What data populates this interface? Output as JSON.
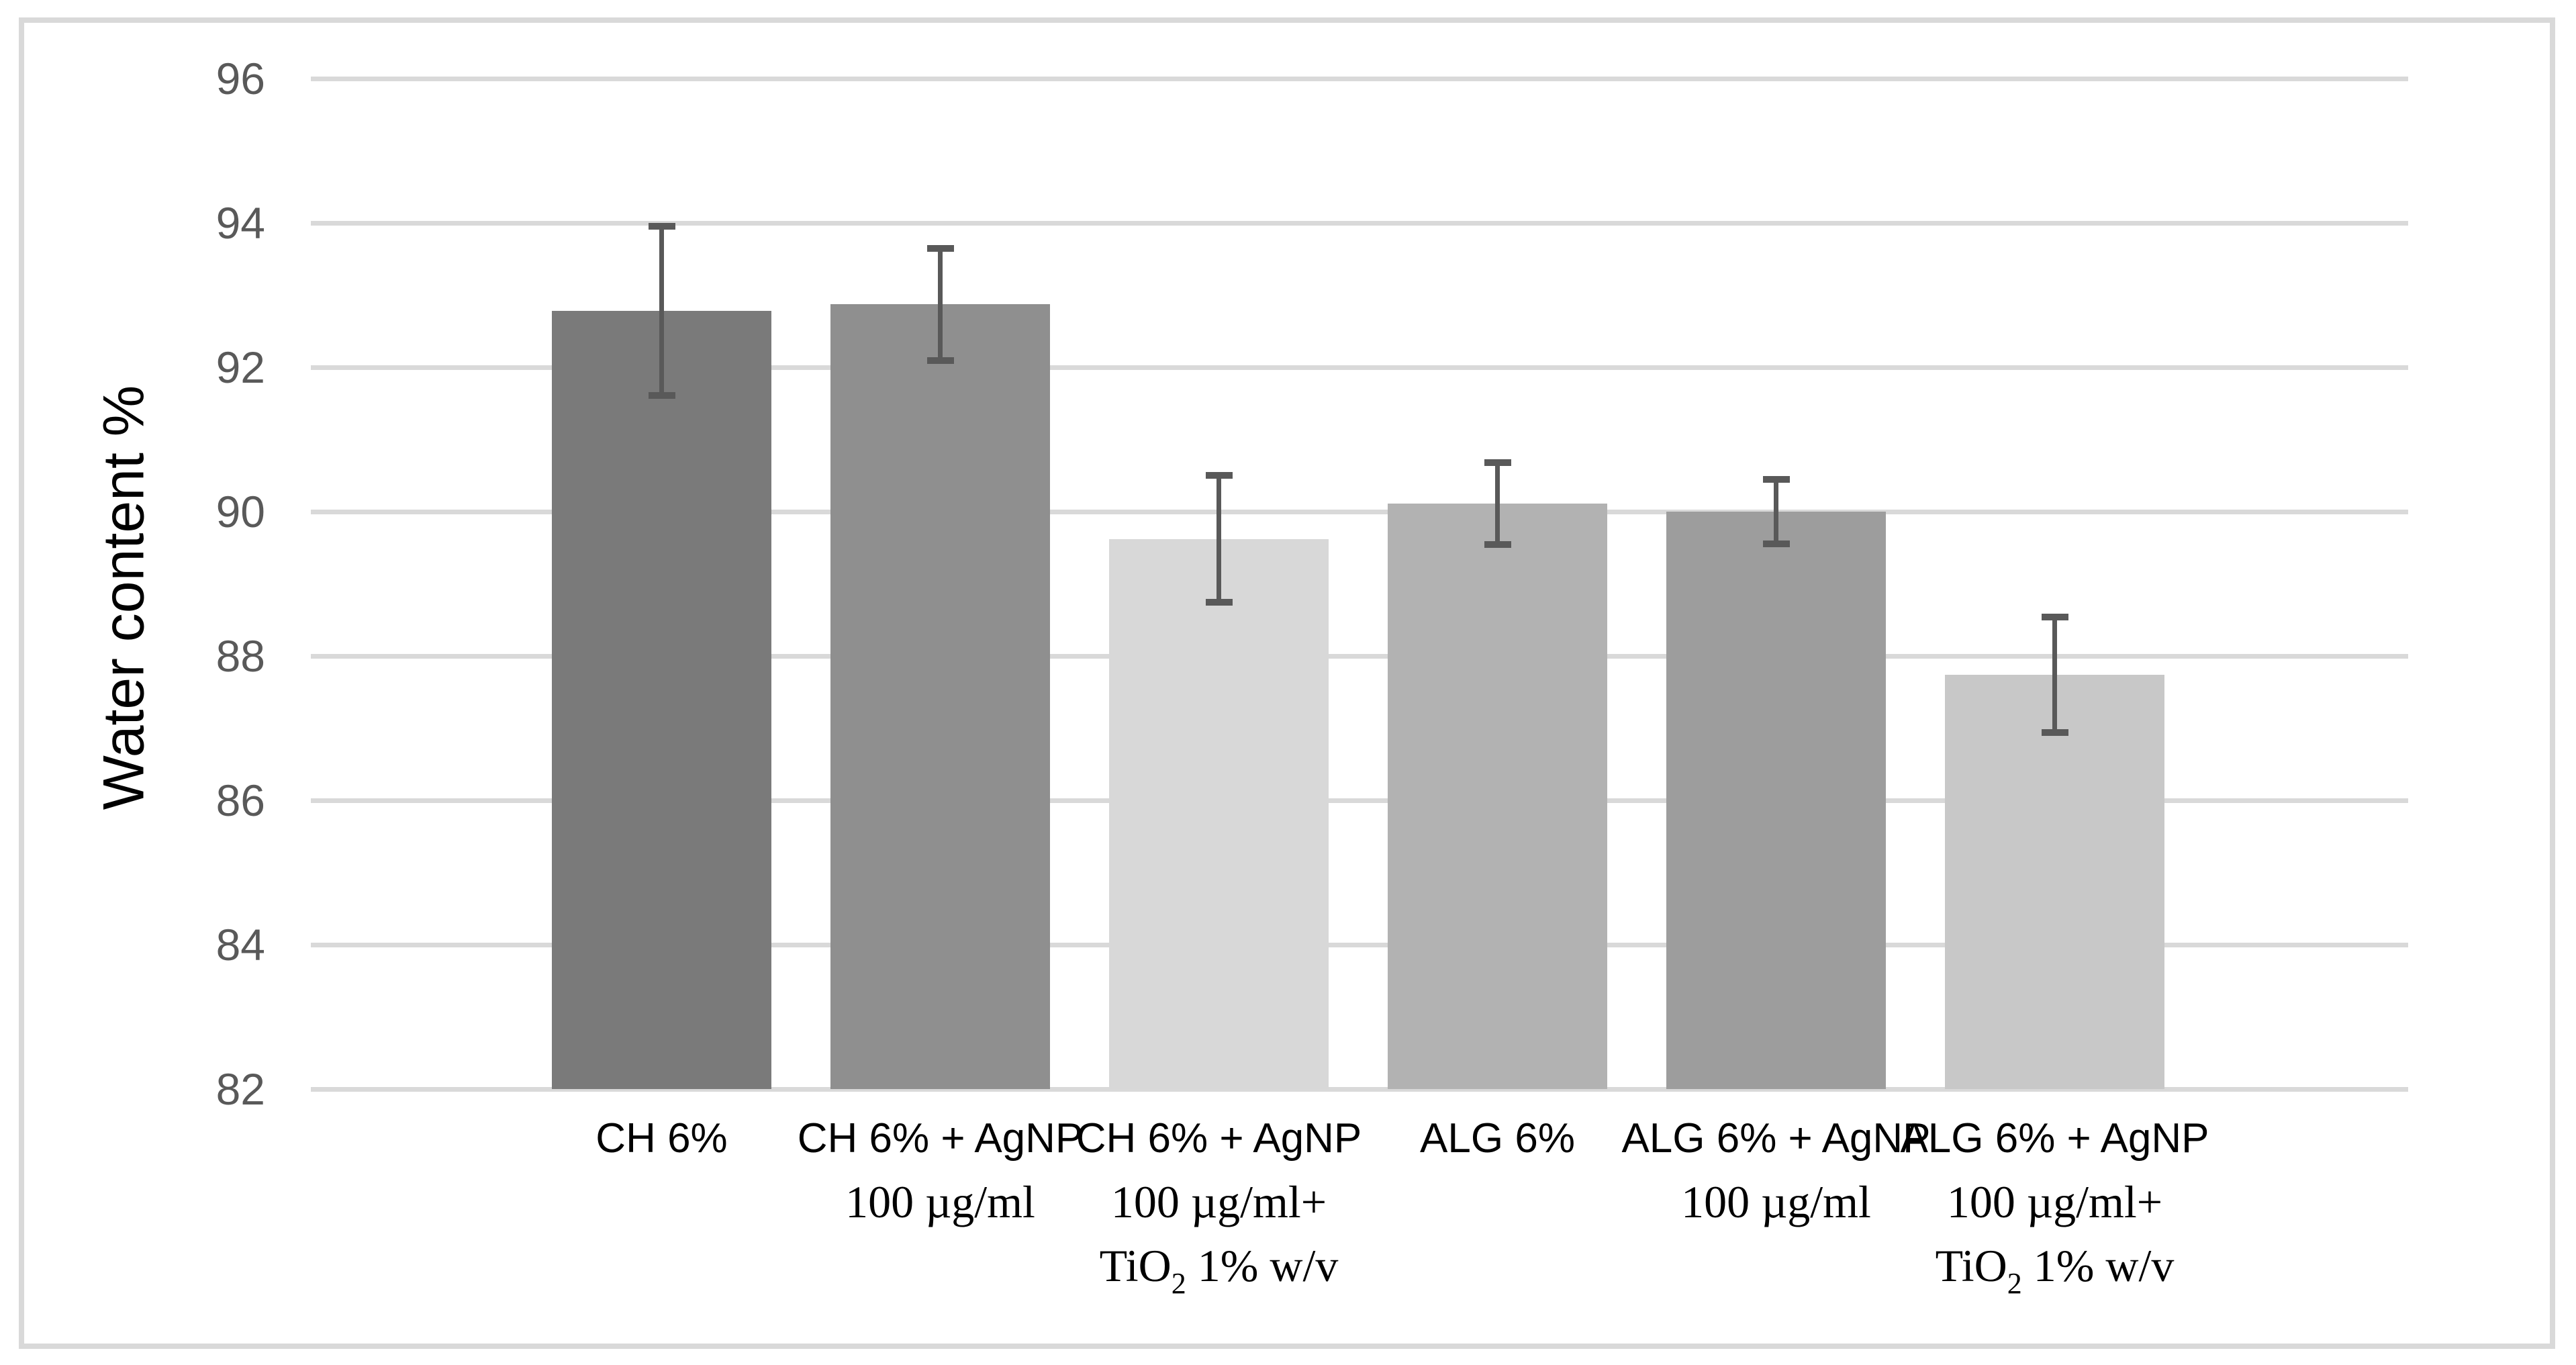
{
  "chart_data": {
    "type": "bar",
    "title": "",
    "xlabel": "",
    "ylabel": "Water content %",
    "ylim": [
      82,
      96
    ],
    "ytick_step": 2,
    "yticks": [
      96,
      94,
      92,
      90,
      88,
      86,
      84,
      82
    ],
    "grid": true,
    "legend": false,
    "categories": [
      {
        "lines": [
          "CH 6%"
        ]
      },
      {
        "lines": [
          "CH 6% + AgNP",
          "100 µg/ml"
        ]
      },
      {
        "lines": [
          "CH 6% + AgNP",
          "100 µg/ml+",
          "TiO2 1% w/v"
        ]
      },
      {
        "lines": [
          "ALG 6%"
        ]
      },
      {
        "lines": [
          "ALG 6% + AgNP",
          "100 µg/ml"
        ]
      },
      {
        "lines": [
          "ALG 6% + AgNP",
          "100 µg/ml+",
          "TiO2 1% w/v"
        ]
      }
    ],
    "series": [
      {
        "name": "Water content %",
        "values": [
          92.78,
          92.87,
          89.62,
          90.11,
          90.0,
          87.74
        ],
        "errors": [
          1.17,
          0.78,
          0.88,
          0.57,
          0.45,
          0.8
        ]
      }
    ],
    "bar_colors": [
      "#7a7a7a",
      "#8f8f8f",
      "#d8d8d8",
      "#b2b2b2",
      "#9d9d9d",
      "#c8c8c8"
    ],
    "colors": {
      "gridline": "#d9d9d9",
      "chart_border": "#d9d9d9",
      "tick_label": "#595959",
      "error_bar": "#595959",
      "axis_title": "#000000",
      "category_label": "#000000",
      "background": "#ffffff"
    }
  }
}
